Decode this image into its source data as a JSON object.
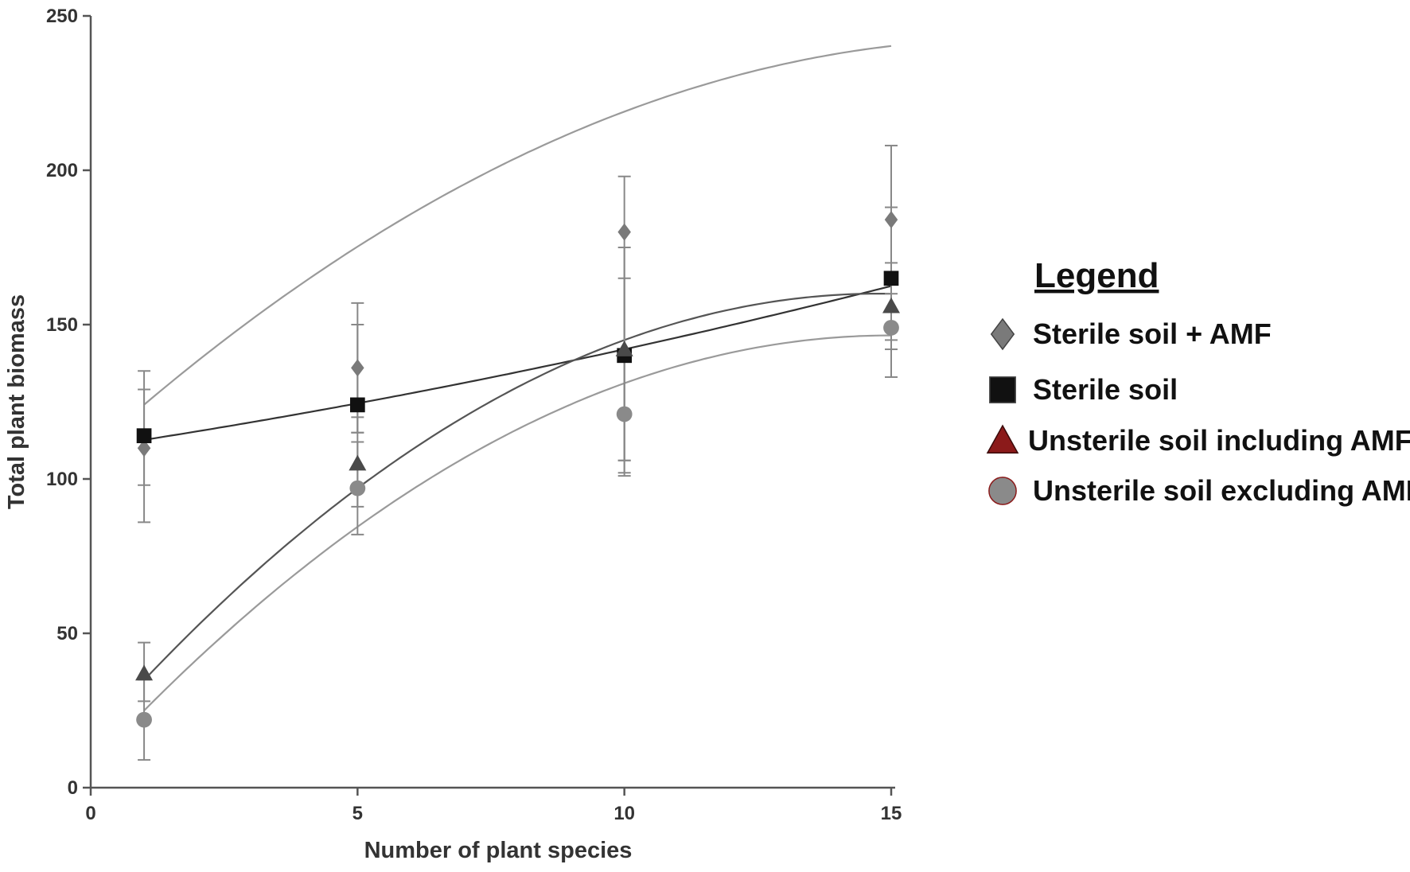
{
  "chart_data": {
    "type": "scatter",
    "title": "",
    "xlabel": "Number of plant species",
    "ylabel": "Total plant biomass",
    "xlim": [
      0,
      15
    ],
    "ylim": [
      0,
      250
    ],
    "xticks": [
      "0",
      "5",
      "10",
      "15"
    ],
    "yticks": [
      "0",
      "50",
      "100",
      "150",
      "200",
      "250"
    ],
    "grid": false,
    "legend_title": "Legend",
    "legend_position": "right",
    "series": [
      {
        "name": "Sterile soil + AMF",
        "marker": "diamond",
        "color": "#7a7a7a",
        "curve_color": "#9a9a9a",
        "x": [
          1,
          5,
          10,
          15
        ],
        "y": [
          110,
          136,
          180,
          184
        ],
        "err_low": [
          86,
          115,
          106,
          160
        ],
        "err_high": [
          135,
          157,
          198,
          208
        ],
        "fit": [
          0.0,
          9.3,
          -0.3,
          100.9,
          -0.9,
          135.5,
          -3,
          170.0
        ]
      },
      {
        "name": "Sterile soil",
        "marker": "square",
        "color": "#111111",
        "curve_color": "#333333",
        "x": [
          1,
          5,
          10,
          15
        ],
        "y": [
          114,
          124,
          140,
          165
        ],
        "err_low": [
          98,
          115,
          106,
          142
        ],
        "err_high": [
          129,
          150,
          175,
          188
        ],
        "fit": [
          0.0,
          0.0,
          0.12,
          0.0,
          2.0,
          108.0
        ]
      },
      {
        "name": "Unsterile soil including AMF",
        "marker": "triangle",
        "color": "#4a4a4a",
        "legend_color": "#8b1a1a",
        "curve_color": "#555555",
        "x": [
          1,
          5,
          10,
          15
        ],
        "y": [
          37,
          105,
          142,
          156
        ],
        "err_low": [
          28,
          91,
          102,
          145
        ],
        "err_high": [
          47,
          120,
          165,
          170
        ],
        "fit": [
          -0.7,
          16.0,
          156.0
        ]
      },
      {
        "name": "Unsterile soil excluding AMF",
        "marker": "circle",
        "color": "#8a8a8a",
        "legend_color": "#8a8a8a",
        "curve_color": "#9a9a9a",
        "x": [
          1,
          5,
          10,
          15
        ],
        "y": [
          22,
          97,
          121,
          149
        ],
        "err_low": [
          9,
          82,
          101,
          133
        ],
        "err_high": [
          35,
          112,
          141,
          163
        ],
        "fit": [
          -0.6,
          18.0,
          145.0
        ]
      }
    ]
  }
}
